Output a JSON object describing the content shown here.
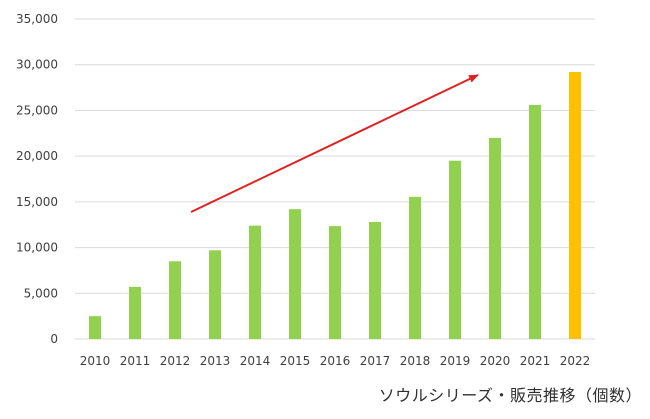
{
  "chart_data": {
    "type": "bar",
    "categories": [
      "2010",
      "2011",
      "2012",
      "2013",
      "2014",
      "2015",
      "2016",
      "2017",
      "2018",
      "2019",
      "2020",
      "2021",
      "2022"
    ],
    "values": [
      2500,
      5700,
      8500,
      9700,
      12400,
      14200,
      12350,
      12800,
      15550,
      19500,
      22000,
      25600,
      29200
    ],
    "ylim": [
      0,
      35000
    ],
    "yticks": [
      0,
      5000,
      10000,
      15000,
      20000,
      25000,
      30000,
      35000
    ],
    "ytick_labels": [
      "0",
      "5,000",
      "10,000",
      "15,000",
      "20,000",
      "25,000",
      "30,000",
      "35,000"
    ],
    "grid": true,
    "colors": {
      "bar": "#92d050",
      "highlight": "#ffc000",
      "arrow": "#e02020",
      "grid": "#d9d9d9"
    },
    "highlight_category": "2022",
    "annotation": "upward red trend arrow",
    "caption": "ソウルシリーズ・販売推移（個数）"
  }
}
